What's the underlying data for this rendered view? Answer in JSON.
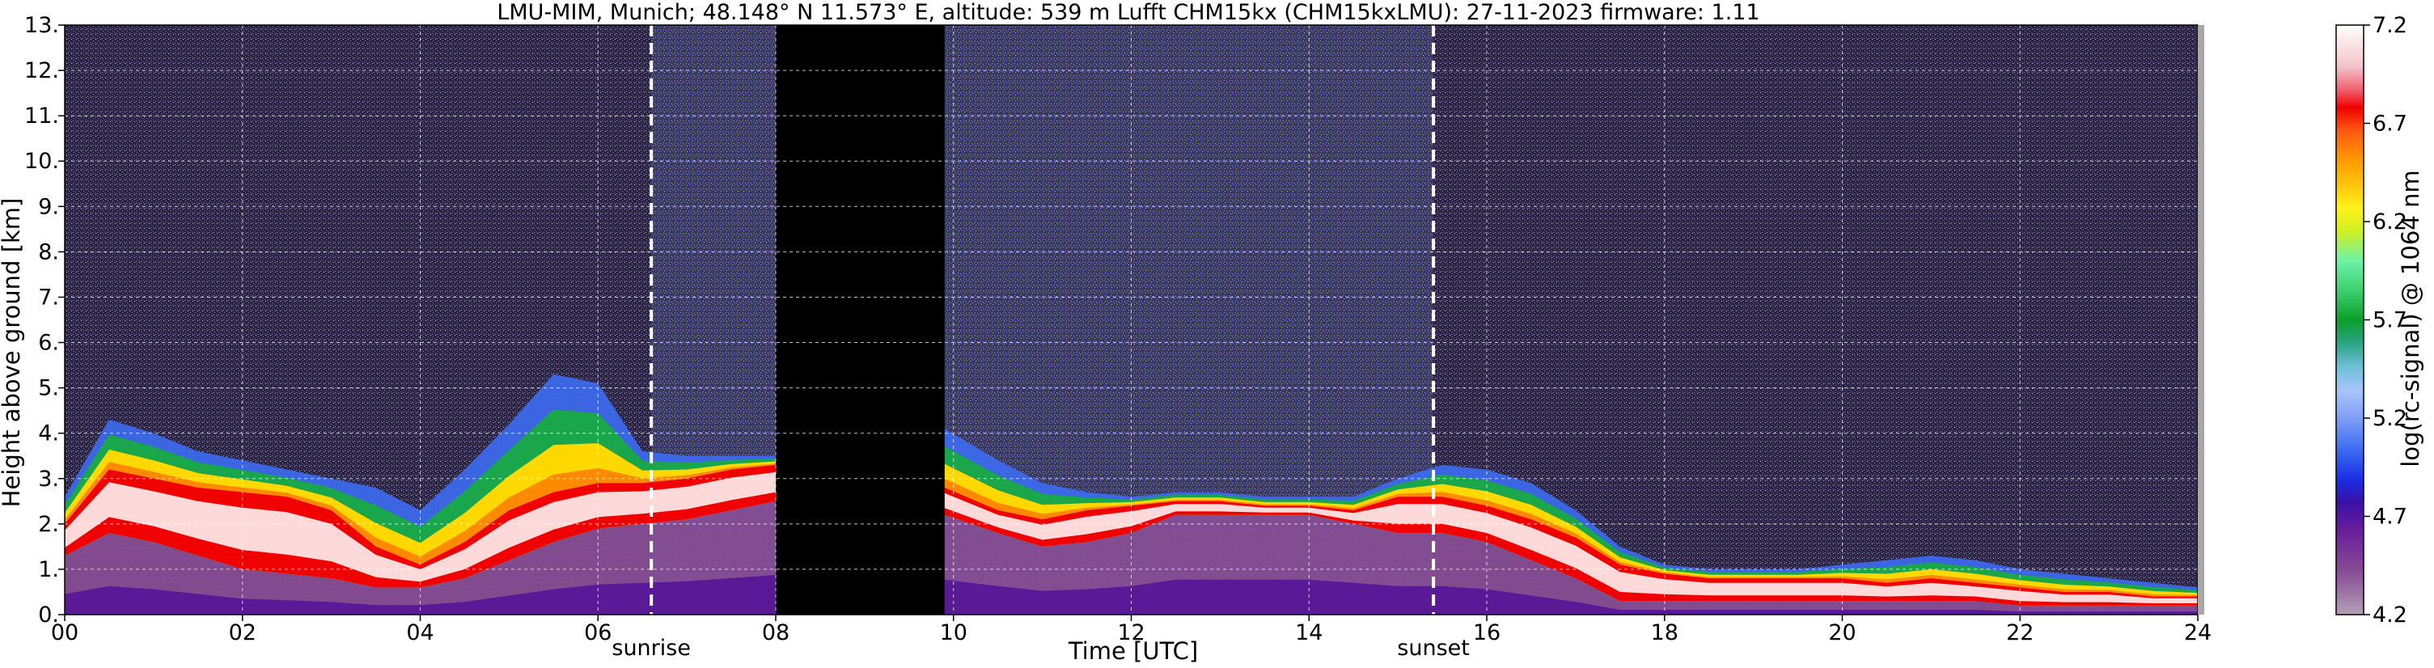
{
  "chart_data": {
    "type": "heatmap",
    "title": "LMU-MIM, Munich; 48.148° N 11.573° E, altitude: 539 m    Lufft CHM15kx (CHM15kxLMU): 27-11-2023    firmware: 1.11",
    "xlabel": "Time [UTC]",
    "ylabel": "Height above ground [km]",
    "xlim": [
      0,
      24
    ],
    "ylim": [
      0,
      13
    ],
    "x_ticks": [
      0,
      2,
      4,
      6,
      8,
      10,
      12,
      14,
      16,
      18,
      20,
      22,
      24
    ],
    "x_tick_labels": [
      "00",
      "02",
      "04",
      "06",
      "08",
      "10",
      "12",
      "14",
      "16",
      "18",
      "20",
      "22",
      "24"
    ],
    "y_ticks": [
      0,
      1,
      2,
      3,
      4,
      5,
      6,
      7,
      8,
      9,
      10,
      11,
      12,
      13
    ],
    "y_tick_labels": [
      "0.",
      "1.",
      "2.",
      "3.",
      "4.",
      "5.",
      "6.",
      "7.",
      "8.",
      "9.",
      "10.",
      "11.",
      "12.",
      "13."
    ],
    "grid": true,
    "events": [
      {
        "label": "sunrise",
        "time": 6.6
      },
      {
        "label": "sunset",
        "time": 15.4
      }
    ],
    "no_data_intervals": [
      [
        8.0,
        9.9
      ]
    ],
    "colorbar": {
      "label": "log(rc-signal) @ 1064 nm",
      "range": [
        4.2,
        7.2
      ],
      "ticks": [
        4.2,
        4.7,
        5.2,
        5.7,
        6.2,
        6.7,
        7.2
      ],
      "tick_labels": [
        "4.2",
        "4.7",
        "5.2",
        "5.7",
        "6.2",
        "6.7",
        "7.2"
      ]
    },
    "layers": {
      "time": [
        0,
        0.5,
        1,
        1.5,
        2,
        2.5,
        3,
        3.5,
        4,
        4.5,
        5,
        5.5,
        6,
        6.5,
        7,
        7.5,
        8,
        9.9,
        10.5,
        11,
        11.5,
        12,
        12.5,
        13,
        13.5,
        14,
        14.5,
        15,
        15.5,
        16,
        16.5,
        17,
        17.5,
        18,
        18.5,
        19,
        19.5,
        20,
        20.5,
        21,
        21.5,
        22,
        22.5,
        23,
        23.5,
        24
      ],
      "strong_layer_top_km": [
        2.0,
        3.2,
        3.0,
        2.8,
        2.7,
        2.6,
        2.3,
        1.5,
        1.1,
        1.6,
        2.3,
        2.7,
        2.9,
        2.9,
        3.0,
        3.2,
        3.3,
        2.8,
        2.3,
        2.1,
        2.3,
        2.4,
        2.5,
        2.5,
        2.4,
        2.4,
        2.3,
        2.6,
        2.6,
        2.4,
        2.1,
        1.7,
        1.1,
        0.9,
        0.8,
        0.8,
        0.8,
        0.8,
        0.7,
        0.8,
        0.7,
        0.6,
        0.5,
        0.5,
        0.4,
        0.4
      ],
      "strong_layer_bottom_km": [
        1.3,
        1.8,
        1.6,
        1.3,
        1.0,
        0.9,
        0.8,
        0.6,
        0.6,
        0.8,
        1.2,
        1.6,
        1.9,
        2.0,
        2.1,
        2.3,
        2.5,
        2.2,
        1.8,
        1.5,
        1.6,
        1.8,
        2.2,
        2.2,
        2.2,
        2.2,
        2.0,
        1.8,
        1.8,
        1.6,
        1.2,
        0.8,
        0.3,
        0.3,
        0.3,
        0.3,
        0.3,
        0.3,
        0.3,
        0.3,
        0.3,
        0.2,
        0.2,
        0.2,
        0.2,
        0.2
      ],
      "aerosol_top_km": [
        2.6,
        4.3,
        4.0,
        3.6,
        3.4,
        3.2,
        3.0,
        2.8,
        2.3,
        3.2,
        4.2,
        5.3,
        5.1,
        3.6,
        3.5,
        3.5,
        3.5,
        4.1,
        3.4,
        2.9,
        2.7,
        2.6,
        2.7,
        2.7,
        2.6,
        2.6,
        2.6,
        3.0,
        3.3,
        3.2,
        2.9,
        2.3,
        1.5,
        1.1,
        1.0,
        1.0,
        1.0,
        1.1,
        1.2,
        1.3,
        1.2,
        1.0,
        0.9,
        0.8,
        0.7,
        0.6
      ]
    }
  }
}
